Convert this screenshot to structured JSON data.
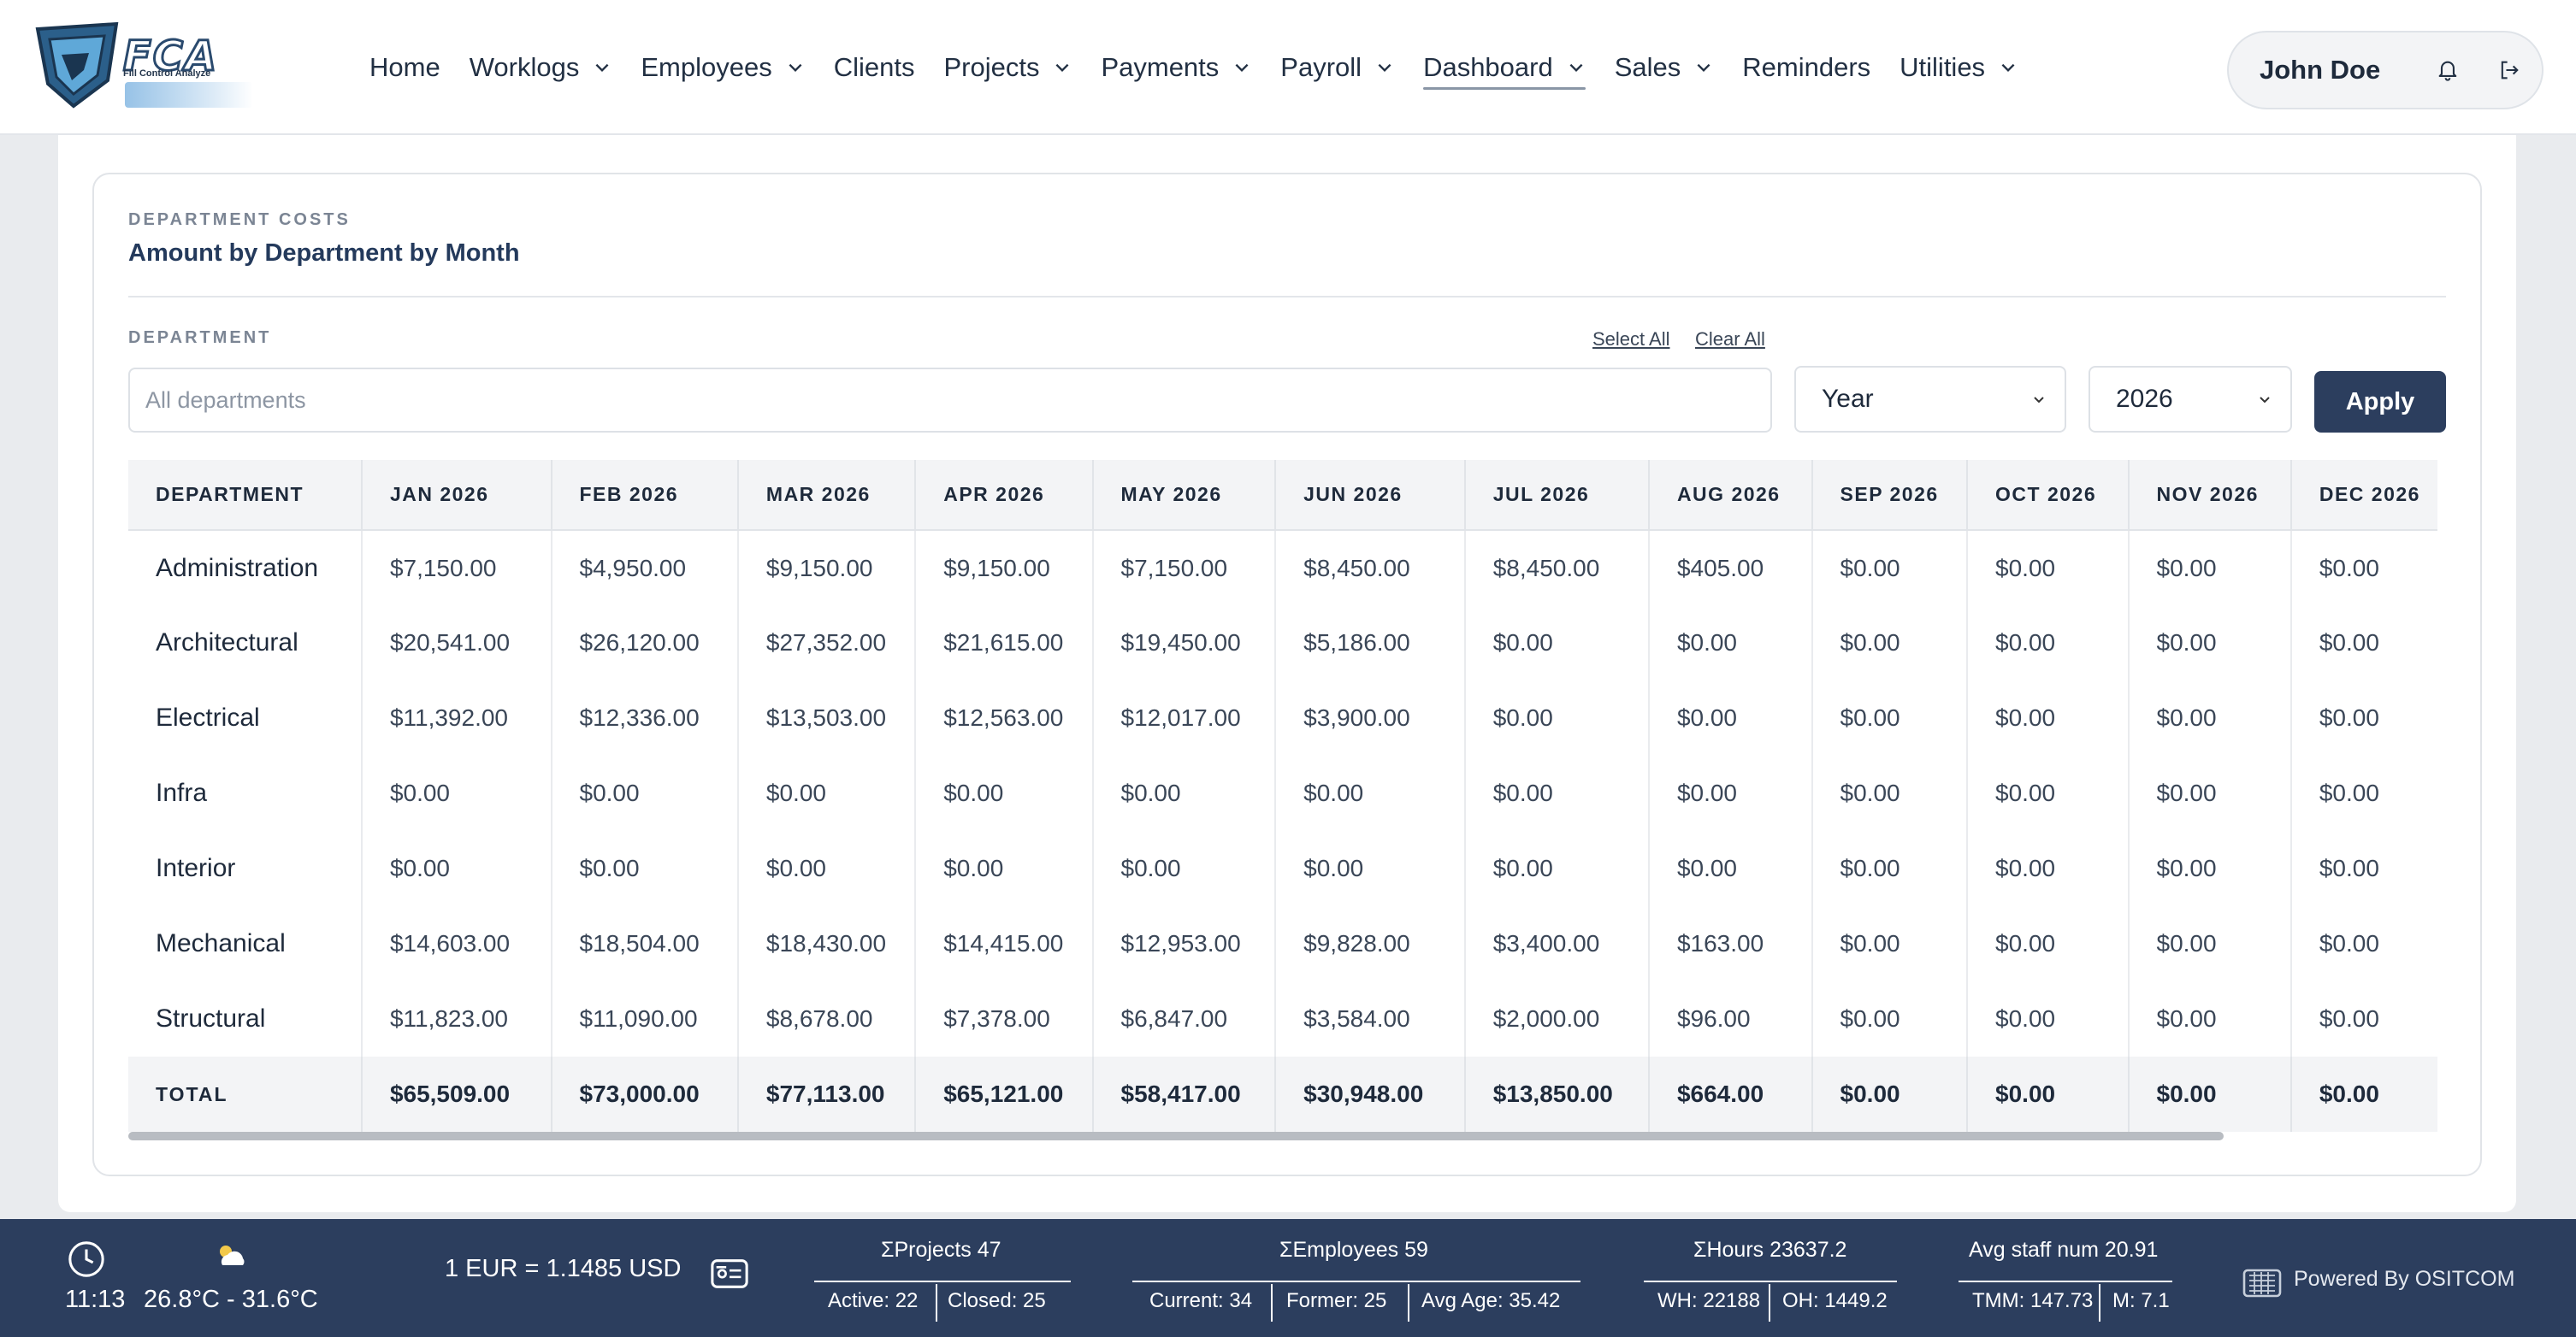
{
  "logo": {
    "text": "FCA",
    "subtitle": "Fill Control Analyze"
  },
  "nav": {
    "items": [
      {
        "label": "Home",
        "dropdown": false
      },
      {
        "label": "Worklogs",
        "dropdown": true
      },
      {
        "label": "Employees",
        "dropdown": true
      },
      {
        "label": "Clients",
        "dropdown": false
      },
      {
        "label": "Projects",
        "dropdown": true
      },
      {
        "label": "Payments",
        "dropdown": true
      },
      {
        "label": "Payroll",
        "dropdown": true
      },
      {
        "label": "Dashboard",
        "dropdown": true,
        "active": true
      },
      {
        "label": "Sales",
        "dropdown": true
      },
      {
        "label": "Reminders",
        "dropdown": false
      },
      {
        "label": "Utilities",
        "dropdown": true
      }
    ],
    "user_name": "John Doe",
    "icons": [
      "bell-icon",
      "logout-icon"
    ]
  },
  "card": {
    "kicker": "DEPARTMENT COSTS",
    "title": "Amount by Department by Month"
  },
  "filters": {
    "department_label": "DEPARTMENT",
    "select_all": "Select All",
    "clear_all": "Clear All",
    "department_placeholder": "All departments",
    "period_value": "Year",
    "year_value": "2026",
    "apply_label": "Apply"
  },
  "table": {
    "headers": [
      "DEPARTMENT",
      "JAN 2026",
      "FEB 2026",
      "MAR 2026",
      "APR 2026",
      "MAY 2026",
      "JUN 2026",
      "JUL 2026",
      "AUG 2026",
      "SEP 2026",
      "OCT 2026",
      "NOV 2026",
      "DEC 2026"
    ],
    "rows": [
      [
        "Administration",
        "$7,150.00",
        "$4,950.00",
        "$9,150.00",
        "$9,150.00",
        "$7,150.00",
        "$8,450.00",
        "$8,450.00",
        "$405.00",
        "$0.00",
        "$0.00",
        "$0.00",
        "$0.00"
      ],
      [
        "Architectural",
        "$20,541.00",
        "$26,120.00",
        "$27,352.00",
        "$21,615.00",
        "$19,450.00",
        "$5,186.00",
        "$0.00",
        "$0.00",
        "$0.00",
        "$0.00",
        "$0.00",
        "$0.00"
      ],
      [
        "Electrical",
        "$11,392.00",
        "$12,336.00",
        "$13,503.00",
        "$12,563.00",
        "$12,017.00",
        "$3,900.00",
        "$0.00",
        "$0.00",
        "$0.00",
        "$0.00",
        "$0.00",
        "$0.00"
      ],
      [
        "Infra",
        "$0.00",
        "$0.00",
        "$0.00",
        "$0.00",
        "$0.00",
        "$0.00",
        "$0.00",
        "$0.00",
        "$0.00",
        "$0.00",
        "$0.00",
        "$0.00"
      ],
      [
        "Interior",
        "$0.00",
        "$0.00",
        "$0.00",
        "$0.00",
        "$0.00",
        "$0.00",
        "$0.00",
        "$0.00",
        "$0.00",
        "$0.00",
        "$0.00",
        "$0.00"
      ],
      [
        "Mechanical",
        "$14,603.00",
        "$18,504.00",
        "$18,430.00",
        "$14,415.00",
        "$12,953.00",
        "$9,828.00",
        "$3,400.00",
        "$163.00",
        "$0.00",
        "$0.00",
        "$0.00",
        "$0.00"
      ],
      [
        "Structural",
        "$11,823.00",
        "$11,090.00",
        "$8,678.00",
        "$7,378.00",
        "$6,847.00",
        "$3,584.00",
        "$2,000.00",
        "$96.00",
        "$0.00",
        "$0.00",
        "$0.00",
        "$0.00"
      ]
    ],
    "total": [
      "TOTAL",
      "$65,509.00",
      "$73,000.00",
      "$77,113.00",
      "$65,121.00",
      "$58,417.00",
      "$30,948.00",
      "$13,850.00",
      "$664.00",
      "$0.00",
      "$0.00",
      "$0.00",
      "$0.00"
    ]
  },
  "footer": {
    "time": "11:13",
    "weather": "26.8°C - 31.6°C",
    "exchange": "1 EUR = 1.1485 USD",
    "projects": {
      "title": "ΣProjects 47",
      "active": "Active: 22",
      "closed": "Closed: 25"
    },
    "employees": {
      "title": "ΣEmployees 59",
      "current": "Current: 34",
      "former": "Former: 25",
      "avg_age": "Avg Age: 35.42"
    },
    "hours": {
      "title": "ΣHours 23637.2",
      "wh": "WH: 22188",
      "oh": "OH: 1449.2"
    },
    "staff": {
      "title": "Avg staff num 20.91",
      "tmm": "TMM: 147.73",
      "m": "M: 7.1"
    },
    "powered": "Powered By OSITCOM"
  },
  "colors": {
    "primary": "#2c3e5e",
    "accent_title": "#243a5c",
    "page_bg": "#e9ebee"
  }
}
